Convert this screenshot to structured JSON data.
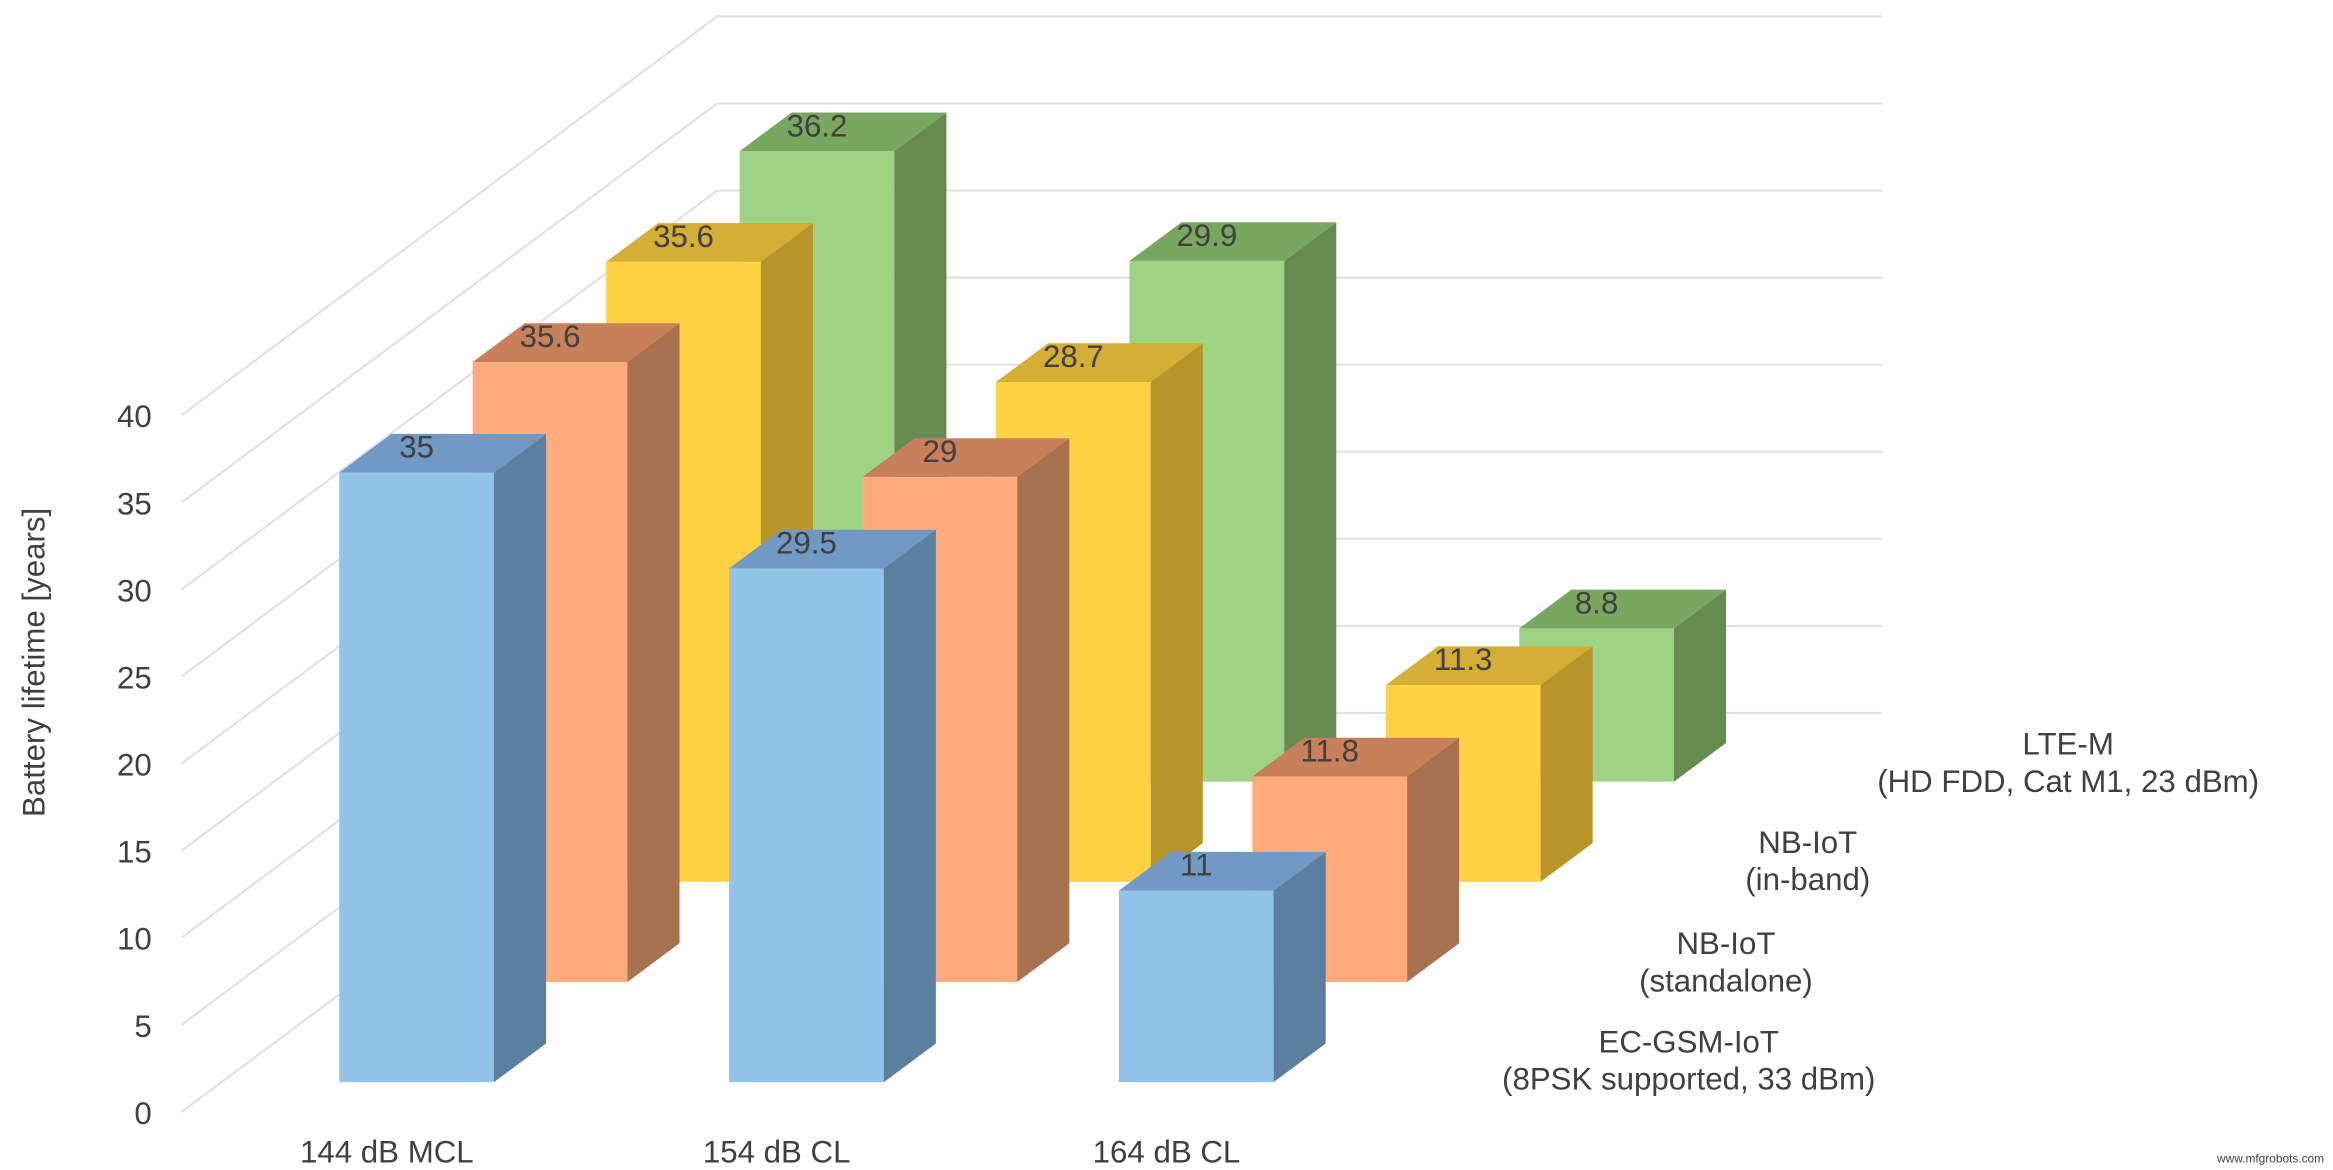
{
  "chart_data": {
    "type": "bar",
    "subtype": "3d-clustered-depth",
    "title": "",
    "xlabel": "",
    "ylabel": "Battery lifetime [years]",
    "ylim": [
      0,
      40
    ],
    "yticks": [
      0,
      5,
      10,
      15,
      20,
      25,
      30,
      35,
      40
    ],
    "grid": true,
    "categories": [
      "144 dB MCL",
      "154 dB CL",
      "164 dB CL"
    ],
    "series": [
      {
        "name": "EC-GSM-IoT",
        "name_line2": "(8PSK supported, 33 dBm)",
        "values": [
          35,
          29.5,
          11
        ],
        "color": "#92C3E8",
        "side_color": "#5B7F9F",
        "top_color": "#7199C4"
      },
      {
        "name": "NB-IoT",
        "name_line2": "(standalone)",
        "values": [
          35.6,
          29,
          11.8
        ],
        "color": "#FFAB7B",
        "side_color": "#A87250",
        "top_color": "#C8805A"
      },
      {
        "name": "NB-IoT",
        "name_line2": "(in-band)",
        "values": [
          35.6,
          28.7,
          11.3
        ],
        "color": "#FFD244",
        "side_color": "#B8952B",
        "top_color": "#D5AE35"
      },
      {
        "name": "LTE-M",
        "name_line2": "(HD FDD, Cat M1, 23 dBm)",
        "values": [
          36.2,
          29.9,
          8.8
        ],
        "color": "#9ED383",
        "side_color": "#678A50",
        "top_color": "#78A760"
      }
    ],
    "legend_position": "right (along depth axis)"
  },
  "watermark": "www.mfgrobots.com"
}
